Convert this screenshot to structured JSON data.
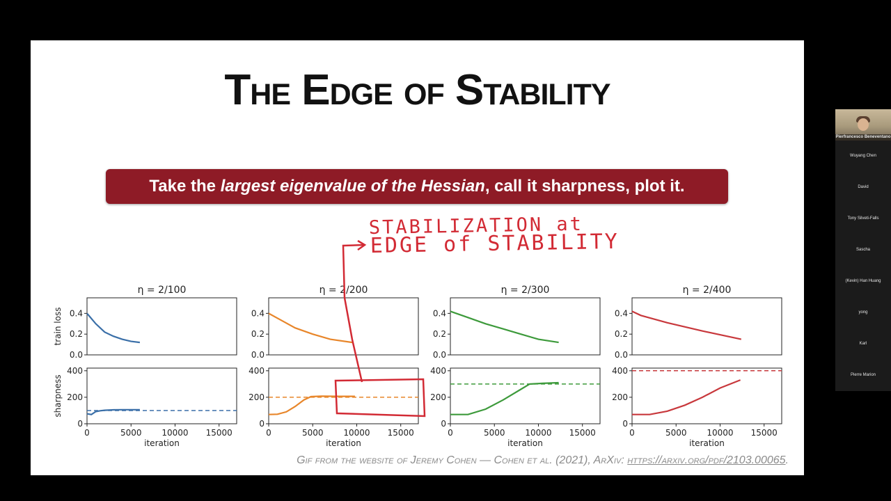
{
  "slide": {
    "title": "The Edge of Stability",
    "banner": {
      "pre": "Take the ",
      "emph": "largest eigenvalue of the Hessian",
      "post": ", call it sharpness, plot it."
    },
    "annotation_text": [
      "STABILIZATION at",
      "EDGE of STABILITY"
    ],
    "footer": {
      "text": "Gif from the website of Jeremy Cohen — Cohen et al. (2021), ArXiv: ",
      "link": "https://arxiv.org/pdf/2103.00065",
      "end": "."
    }
  },
  "chart_data": [
    {
      "type": "line",
      "title": "η = 2/100",
      "color": "#3a6fa8",
      "ylabel": "train loss",
      "ylim": [
        0,
        0.55
      ],
      "xlim": [
        0,
        17000
      ],
      "yticks": [
        "0.0",
        "0.2",
        "0.4"
      ],
      "x": [
        0,
        1000,
        2000,
        3000,
        4000,
        5000,
        6000
      ],
      "y": [
        0.4,
        0.3,
        0.22,
        0.18,
        0.15,
        0.13,
        0.12
      ]
    },
    {
      "type": "line",
      "title": "η = 2/100",
      "color": "#3a6fa8",
      "ylabel": "sharpness",
      "ylim": [
        0,
        420
      ],
      "xlim": [
        0,
        17000
      ],
      "yticks": [
        "0",
        "200",
        "400"
      ],
      "xticks": [
        "0",
        "5000",
        "10000",
        "15000"
      ],
      "xlabel": "iteration",
      "threshold": 100,
      "x": [
        0,
        500,
        1000,
        1500,
        2000,
        3000,
        4000,
        5000,
        6000
      ],
      "y": [
        75,
        70,
        92,
        98,
        102,
        105,
        106,
        106,
        106
      ]
    },
    {
      "type": "line",
      "title": "η = 2/200",
      "color": "#e8862a",
      "ylabel": "",
      "ylim": [
        0,
        0.55
      ],
      "xlim": [
        0,
        17000
      ],
      "yticks": [
        "0.0",
        "0.2",
        "0.4"
      ],
      "x": [
        0,
        1500,
        3000,
        5000,
        7000,
        9500
      ],
      "y": [
        0.4,
        0.33,
        0.26,
        0.2,
        0.15,
        0.12
      ]
    },
    {
      "type": "line",
      "title": "η = 2/200",
      "color": "#e8862a",
      "ylabel": "",
      "ylim": [
        0,
        420
      ],
      "xlim": [
        0,
        17000
      ],
      "yticks": [
        "0",
        "200",
        "400"
      ],
      "xticks": [
        "0",
        "5000",
        "10000",
        "15000"
      ],
      "xlabel": "iteration",
      "threshold": 200,
      "x": [
        0,
        1000,
        2000,
        3000,
        4000,
        4800,
        6000,
        8000,
        9800
      ],
      "y": [
        70,
        72,
        90,
        130,
        180,
        205,
        208,
        207,
        207
      ]
    },
    {
      "type": "line",
      "title": "η = 2/300",
      "color": "#3d9a3b",
      "ylabel": "",
      "ylim": [
        0,
        0.55
      ],
      "xlim": [
        0,
        17000
      ],
      "yticks": [
        "0.0",
        "0.2",
        "0.4"
      ],
      "x": [
        0,
        2000,
        4000,
        6000,
        8000,
        10000,
        12300
      ],
      "y": [
        0.42,
        0.36,
        0.3,
        0.25,
        0.2,
        0.15,
        0.12
      ]
    },
    {
      "type": "line",
      "title": "η = 2/300",
      "color": "#3d9a3b",
      "ylabel": "",
      "ylim": [
        0,
        420
      ],
      "xlim": [
        0,
        17000
      ],
      "yticks": [
        "0",
        "200",
        "400"
      ],
      "xticks": [
        "0",
        "5000",
        "10000",
        "15000"
      ],
      "xlabel": "iteration",
      "threshold": 300,
      "x": [
        0,
        2000,
        4000,
        6000,
        8000,
        9000,
        10500,
        12300
      ],
      "y": [
        70,
        70,
        110,
        180,
        260,
        300,
        305,
        310
      ]
    },
    {
      "type": "line",
      "title": "η = 2/400",
      "color": "#c8383c",
      "ylabel": "",
      "ylim": [
        0,
        0.55
      ],
      "xlim": [
        0,
        17000
      ],
      "yticks": [
        "0.0",
        "0.2",
        "0.4"
      ],
      "x": [
        0,
        1000,
        4000,
        8000,
        12400
      ],
      "y": [
        0.42,
        0.38,
        0.31,
        0.23,
        0.15
      ]
    },
    {
      "type": "line",
      "title": "η = 2/400",
      "color": "#c8383c",
      "ylabel": "",
      "ylim": [
        0,
        420
      ],
      "xlim": [
        0,
        17000
      ],
      "yticks": [
        "0",
        "200",
        "400"
      ],
      "xticks": [
        "0",
        "5000",
        "10000",
        "15000"
      ],
      "xlabel": "iteration",
      "threshold": 400,
      "x": [
        0,
        2000,
        4000,
        6000,
        8000,
        10000,
        12300
      ],
      "y": [
        70,
        70,
        95,
        140,
        200,
        270,
        330
      ]
    }
  ],
  "gallery": {
    "participants": [
      "Pierfrancesco Beneventano",
      "Wuyang Chen",
      "David",
      "Tony Silveti-Falls",
      "Sascha",
      "(Kevin) Han Huang",
      "yong",
      "Karl",
      "Pierre Marion"
    ]
  }
}
